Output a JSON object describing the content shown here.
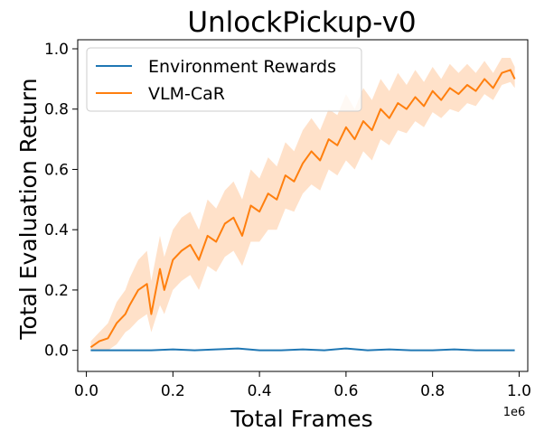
{
  "chart_data": {
    "type": "line",
    "title": "UnlockPickup-v0",
    "xlabel": "Total Frames",
    "ylabel": "Total Evaluation Return",
    "x_offset_label": "1e6",
    "xlim": [
      -0.02,
      1.02
    ],
    "ylim": [
      -0.07,
      1.03
    ],
    "xticks": [
      0.0,
      0.2,
      0.4,
      0.6,
      0.8,
      1.0
    ],
    "xtick_labels": [
      "0.0",
      "0.2",
      "0.4",
      "0.6",
      "0.8",
      "1.0"
    ],
    "yticks": [
      0.0,
      0.2,
      0.4,
      0.6,
      0.8,
      1.0
    ],
    "ytick_labels": [
      "0.0",
      "0.2",
      "0.4",
      "0.6",
      "0.8",
      "1.0"
    ],
    "grid": false,
    "legend_position": "upper-left",
    "series": [
      {
        "name": "Environment Rewards",
        "color": "#1f77b4",
        "x": [
          0.01,
          0.05,
          0.1,
          0.15,
          0.2,
          0.25,
          0.3,
          0.35,
          0.4,
          0.45,
          0.5,
          0.55,
          0.6,
          0.65,
          0.7,
          0.75,
          0.8,
          0.85,
          0.9,
          0.95,
          0.99
        ],
        "y": [
          0.0,
          0.0,
          0.0,
          0.0,
          0.003,
          0.0,
          0.003,
          0.006,
          0.0,
          0.0,
          0.003,
          0.0,
          0.006,
          0.0,
          0.003,
          0.0,
          0.0,
          0.003,
          0.0,
          0.0,
          0.0
        ]
      },
      {
        "name": "VLM-CaR",
        "color": "#ff7f0e",
        "band_color": "#ffdcbf",
        "x": [
          0.01,
          0.03,
          0.05,
          0.07,
          0.09,
          0.1,
          0.12,
          0.14,
          0.15,
          0.17,
          0.18,
          0.2,
          0.22,
          0.24,
          0.26,
          0.28,
          0.3,
          0.32,
          0.34,
          0.36,
          0.38,
          0.4,
          0.42,
          0.44,
          0.46,
          0.48,
          0.5,
          0.52,
          0.54,
          0.56,
          0.58,
          0.6,
          0.62,
          0.64,
          0.66,
          0.68,
          0.7,
          0.72,
          0.74,
          0.76,
          0.78,
          0.8,
          0.82,
          0.84,
          0.86,
          0.88,
          0.9,
          0.92,
          0.94,
          0.96,
          0.98,
          0.99
        ],
        "y": [
          0.01,
          0.03,
          0.04,
          0.09,
          0.12,
          0.15,
          0.2,
          0.22,
          0.12,
          0.27,
          0.2,
          0.3,
          0.33,
          0.35,
          0.3,
          0.38,
          0.36,
          0.42,
          0.44,
          0.38,
          0.48,
          0.46,
          0.52,
          0.5,
          0.58,
          0.56,
          0.62,
          0.66,
          0.63,
          0.7,
          0.68,
          0.74,
          0.7,
          0.76,
          0.73,
          0.8,
          0.77,
          0.82,
          0.8,
          0.84,
          0.81,
          0.86,
          0.83,
          0.87,
          0.85,
          0.88,
          0.86,
          0.9,
          0.87,
          0.92,
          0.93,
          0.9
        ],
        "lower": [
          0.0,
          0.0,
          0.0,
          0.02,
          0.06,
          0.07,
          0.1,
          0.12,
          0.06,
          0.15,
          0.12,
          0.2,
          0.23,
          0.25,
          0.2,
          0.28,
          0.26,
          0.31,
          0.33,
          0.28,
          0.36,
          0.36,
          0.4,
          0.4,
          0.47,
          0.46,
          0.52,
          0.55,
          0.53,
          0.6,
          0.58,
          0.63,
          0.6,
          0.66,
          0.63,
          0.7,
          0.68,
          0.73,
          0.72,
          0.76,
          0.74,
          0.79,
          0.77,
          0.8,
          0.79,
          0.82,
          0.81,
          0.85,
          0.83,
          0.88,
          0.89,
          0.87
        ],
        "upper": [
          0.03,
          0.06,
          0.09,
          0.16,
          0.2,
          0.24,
          0.3,
          0.33,
          0.23,
          0.38,
          0.31,
          0.4,
          0.44,
          0.46,
          0.4,
          0.5,
          0.47,
          0.53,
          0.56,
          0.5,
          0.6,
          0.57,
          0.64,
          0.61,
          0.69,
          0.66,
          0.73,
          0.77,
          0.73,
          0.8,
          0.78,
          0.85,
          0.8,
          0.87,
          0.83,
          0.9,
          0.86,
          0.92,
          0.88,
          0.93,
          0.89,
          0.94,
          0.9,
          0.95,
          0.92,
          0.95,
          0.92,
          0.96,
          0.92,
          0.97,
          0.97,
          0.94
        ]
      }
    ]
  }
}
